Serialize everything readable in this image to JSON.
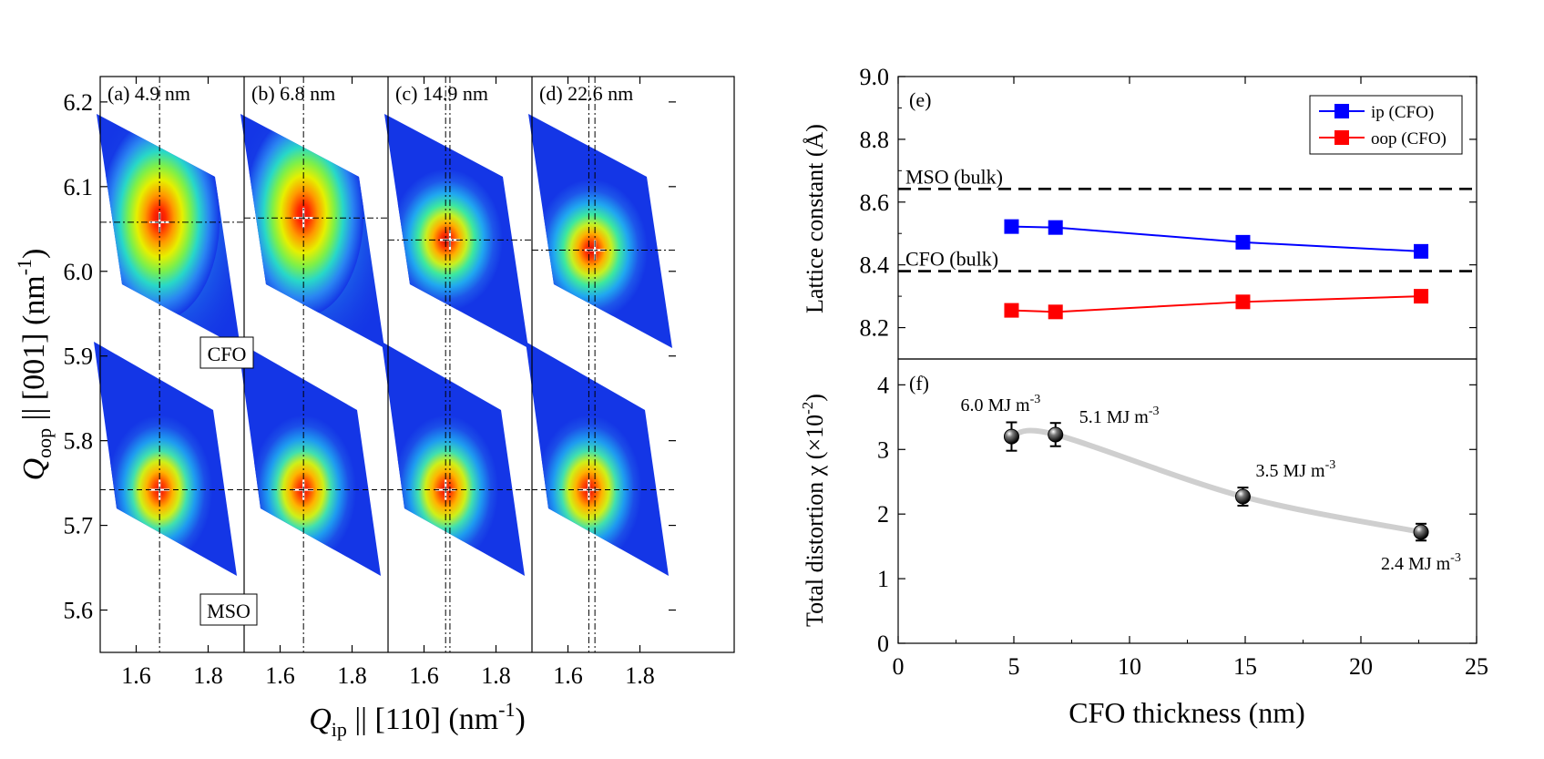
{
  "chart_data": [
    {
      "type": "heatmap",
      "name": "reciprocal-space-maps",
      "xlabel": {
        "main": "Q",
        "sub": "ip",
        "rest": " || [110] (nm",
        "sup": "-1",
        "close": ")"
      },
      "ylabel": {
        "main": "Q",
        "sub": "oop",
        "rest": " || [001] (nm",
        "sup": "-1",
        "close": ")"
      },
      "xlim": [
        1.5,
        1.9
      ],
      "ylim": [
        5.55,
        6.23
      ],
      "x_ticks": [
        "1.6",
        "1.8"
      ],
      "x_tick_values": [
        1.6,
        1.8
      ],
      "y_ticks": [
        "5.6",
        "5.7",
        "5.8",
        "5.9",
        "6.0",
        "6.1",
        "6.2"
      ],
      "y_tick_values": [
        5.6,
        5.7,
        5.8,
        5.9,
        6.0,
        6.1,
        6.2
      ],
      "film_label": "CFO",
      "substrate_label": "MSO",
      "panels": [
        {
          "label": "(a) 4.9 nm",
          "film_peak": [
            1.665,
            6.058
          ],
          "substrate_peak": [
            1.665,
            5.742
          ],
          "film_spread": "broad"
        },
        {
          "label": "(b) 6.8 nm",
          "film_peak": [
            1.665,
            6.063
          ],
          "substrate_peak": [
            1.665,
            5.742
          ],
          "film_spread": "broad"
        },
        {
          "label": "(c) 14.9 nm",
          "film_peak": [
            1.672,
            6.037
          ],
          "substrate_peak": [
            1.66,
            5.742
          ],
          "film_spread": "narrow"
        },
        {
          "label": "(d) 22.6 nm",
          "film_peak": [
            1.675,
            6.025
          ],
          "substrate_peak": [
            1.658,
            5.742
          ],
          "film_spread": "narrow"
        }
      ]
    },
    {
      "type": "line",
      "name": "lattice-constant",
      "panel_label": "(e)",
      "ylabel": "Lattice constant (Å)",
      "ylim": [
        8.1,
        9.0
      ],
      "xlim": [
        0,
        25
      ],
      "y_ticks": [
        "8.2",
        "8.4",
        "8.6",
        "8.8",
        "9.0"
      ],
      "y_tick_values": [
        8.2,
        8.4,
        8.6,
        8.8,
        9.0
      ],
      "x": [
        4.9,
        6.8,
        14.9,
        22.6
      ],
      "series": [
        {
          "name": "ip (CFO)",
          "values": [
            8.522,
            8.519,
            8.472,
            8.443
          ],
          "color": "#0000ff"
        },
        {
          "name": "oop (CFO)",
          "values": [
            8.255,
            8.25,
            8.282,
            8.3
          ],
          "color": "#ff0000"
        }
      ],
      "reference_lines": [
        {
          "label": "MSO (bulk)",
          "value": 8.642
        },
        {
          "label": "CFO (bulk)",
          "value": 8.38
        }
      ]
    },
    {
      "type": "scatter",
      "name": "total-distortion",
      "panel_label": "(f)",
      "ylabel": {
        "main": "Total distortion χ (×10",
        "sup": "-2",
        "close": ")"
      },
      "xlabel": "CFO thickness (nm)",
      "xlim": [
        0,
        25
      ],
      "ylim": [
        0,
        4.4
      ],
      "x_ticks": [
        "0",
        "5",
        "10",
        "15",
        "20",
        "25"
      ],
      "x_tick_values": [
        0,
        5,
        10,
        15,
        20,
        25
      ],
      "y_ticks": [
        "0",
        "1",
        "2",
        "3",
        "4"
      ],
      "y_tick_values": [
        0,
        1,
        2,
        3,
        4
      ],
      "x": [
        4.9,
        6.8,
        14.9,
        22.6
      ],
      "values": [
        3.2,
        3.23,
        2.27,
        1.72
      ],
      "errors": [
        0.22,
        0.18,
        0.14,
        0.13
      ],
      "annotations": [
        {
          "text": "6.0 MJ m",
          "sup": "-3",
          "anchor": "above-left"
        },
        {
          "text": "5.1 MJ m",
          "sup": "-3",
          "anchor": "right"
        },
        {
          "text": "3.5 MJ m",
          "sup": "-3",
          "anchor": "above-right"
        },
        {
          "text": "2.4 MJ m",
          "sup": "-3",
          "anchor": "below"
        }
      ]
    }
  ]
}
